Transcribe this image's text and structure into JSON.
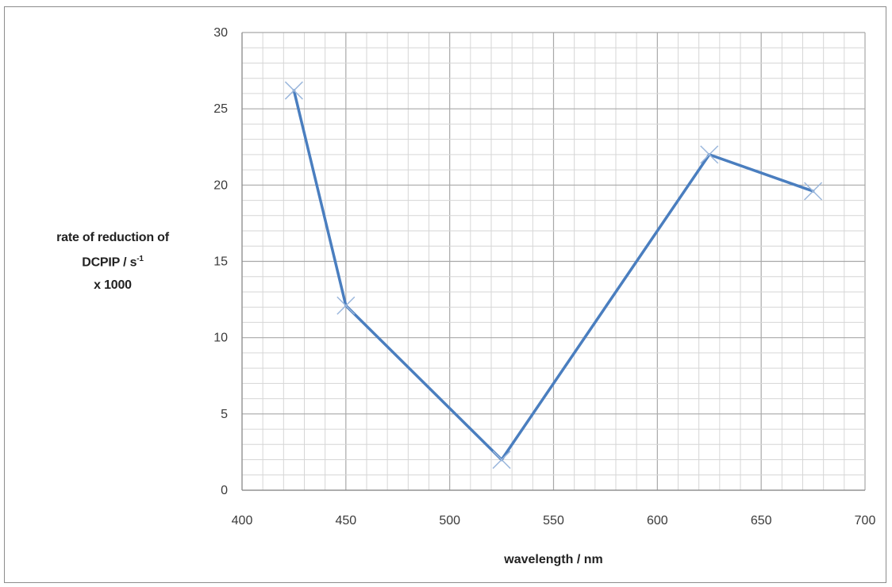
{
  "chart_data": {
    "type": "line",
    "title": "",
    "xlabel": "wavelength / nm",
    "ylabel_lines": [
      "rate of reduction of",
      "DCPIP / s",
      "x 1000"
    ],
    "ylabel_superscript": "-1",
    "xlim": [
      400,
      700
    ],
    "ylim": [
      0,
      30
    ],
    "x_ticks": [
      400,
      450,
      500,
      550,
      600,
      650,
      700
    ],
    "y_ticks": [
      0,
      5,
      10,
      15,
      20,
      25,
      30
    ],
    "grid": true,
    "legend": "none",
    "marker": "x",
    "series": [
      {
        "color": "#4a7ebf",
        "x": [
          425,
          450,
          525,
          625,
          675
        ],
        "y": [
          26.2,
          12.1,
          2.0,
          22.0,
          19.6
        ]
      }
    ]
  }
}
